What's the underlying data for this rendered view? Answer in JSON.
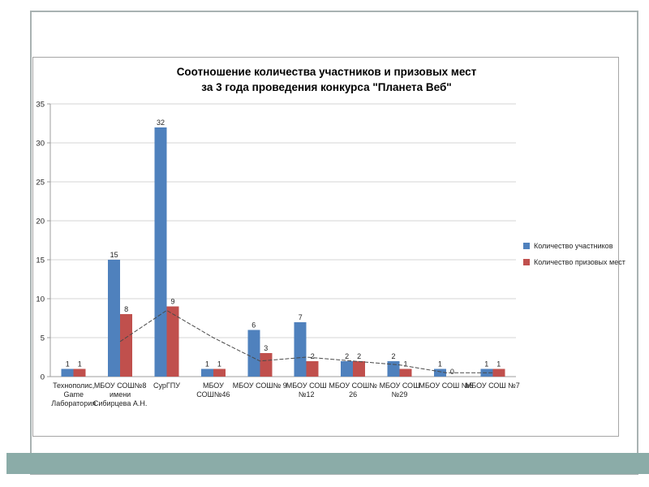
{
  "slide": {
    "title_line1": "Соотношение количества участников и призовых мест",
    "title_line2": "за 3 года проведения конкурса \"Планета Веб\""
  },
  "colors": {
    "participants_bar": "#4F81BD",
    "prizes_bar": "#C0504D",
    "accent_band": "#8BACA8",
    "slide_border": "#A9B2B2",
    "chart_border": "#A6A6A6",
    "gridline": "#D5D5D5",
    "axis": "#9C9C9C",
    "trendline": "#4A4A4A",
    "text": "#1F1F1F"
  },
  "chart_data": {
    "type": "bar",
    "title": "Соотношение количества участников и призовых мест за 3 года проведения конкурса \"Планета Веб\"",
    "categories": [
      "Технополис, Game Лаборатория",
      "МБОУ СОШ№8 имени Сибирцева А.Н.",
      "СурГПУ",
      "МБОУ СОШ№46",
      "МБОУ СОШ№ 9",
      "МБОУ СОШ №12",
      "МБОУ СОШ№ 26",
      "МБОУ СОШ №29",
      "МБОУ СОШ №5",
      "МБОУ СОШ №7"
    ],
    "category_label_lines": [
      [
        "Технополис,",
        "Game",
        "Лаборатория"
      ],
      [
        "МБОУ СОШ№8",
        "имени",
        "Сибирцева А.Н."
      ],
      [
        "СурГПУ"
      ],
      [
        "МБОУ",
        "СОШ№46"
      ],
      [
        "МБОУ СОШ№ 9"
      ],
      [
        "МБОУ СОШ",
        "№12"
      ],
      [
        "МБОУ СОШ№",
        "26"
      ],
      [
        "МБОУ СОШ",
        "№29"
      ],
      [
        "МБОУ СОШ №5"
      ],
      [
        "МБОУ СОШ №7"
      ]
    ],
    "series": [
      {
        "name": "Количество участников",
        "color": "#4F81BD",
        "values": [
          1,
          15,
          32,
          1,
          6,
          7,
          2,
          2,
          1,
          1
        ]
      },
      {
        "name": "Количество призовых мест",
        "color": "#C0504D",
        "values": [
          1,
          8,
          9,
          1,
          3,
          2,
          2,
          1,
          0,
          1
        ]
      }
    ],
    "trendline": {
      "for_series": "Количество призовых мест",
      "style": "dashed",
      "start_category_index": 1,
      "values": [
        4.5,
        8.5,
        5,
        2,
        2.5,
        2,
        1.5,
        0.5,
        0.5
      ]
    },
    "yticks": [
      0,
      5,
      10,
      15,
      20,
      25,
      30,
      35
    ],
    "ylim": [
      0,
      35
    ],
    "grid": true,
    "legend_position": "right",
    "data_labels": true
  }
}
